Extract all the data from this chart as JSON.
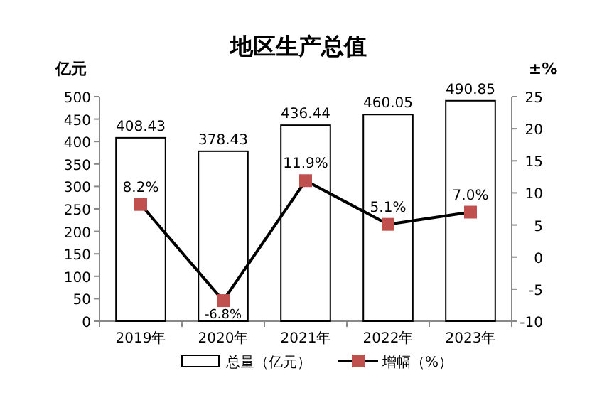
{
  "chart_data": {
    "type": "bar",
    "title": "地区生产总值",
    "ylabel": "亿元",
    "y2label": "±%",
    "categories": [
      "2019年",
      "2020年",
      "2021年",
      "2022年",
      "2023年"
    ],
    "series": [
      {
        "name": "总量（亿元）",
        "color": "#ffffff",
        "values": [
          408.43,
          378.43,
          436.44,
          460.05,
          490.85
        ],
        "value_labels": [
          "408.43",
          "378.43",
          "436.44",
          "460.05",
          "490.85"
        ]
      },
      {
        "name": "增幅（%）",
        "type": "line",
        "axis": "y2",
        "color": "#000000",
        "marker": "square",
        "values": [
          8.2,
          -6.8,
          11.9,
          5.1,
          7.0
        ],
        "value_labels": [
          "8.2%",
          "-6.8%",
          "11.9%",
          "5.1%",
          "7.0%"
        ]
      }
    ],
    "ylim": [
      0,
      500
    ],
    "yticks": [
      0,
      50,
      100,
      150,
      200,
      250,
      300,
      350,
      400,
      450,
      500
    ],
    "y2lim": [
      -10,
      25
    ],
    "y2ticks": [
      -10,
      -5,
      0,
      5,
      10,
      15,
      20,
      25
    ],
    "legend": "bottom",
    "grid": false
  }
}
